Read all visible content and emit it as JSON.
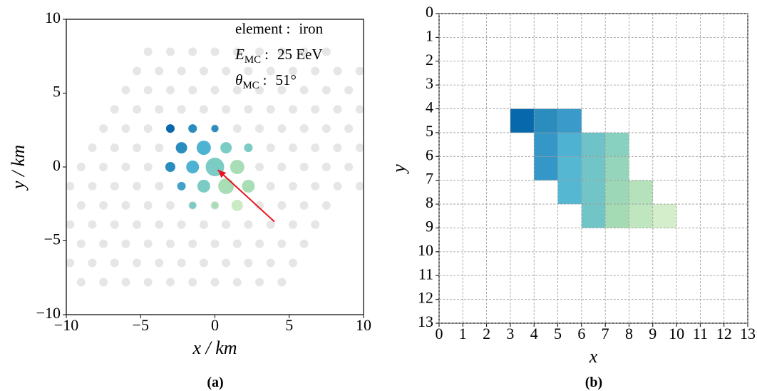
{
  "chart_data": [
    {
      "type": "scatter",
      "caption": "(a)",
      "xlabel": "x / km",
      "ylabel": "y / km",
      "xlim": [
        -10,
        10
      ],
      "ylim": [
        -10,
        10
      ],
      "xticks": [
        {
          "value": -10,
          "label": "−10"
        },
        {
          "value": -5,
          "label": "−5"
        },
        0,
        5,
        10
      ],
      "yticks": [
        {
          "value": -10,
          "label": "−10"
        },
        {
          "value": -5,
          "label": "−5"
        },
        0,
        5,
        10
      ],
      "stations": {
        "color": "#e6e6e6",
        "rows": [
          {
            "y": 7.8,
            "x": [
              -4.5,
              -3,
              -1.5,
              0,
              1.5,
              3,
              4.5,
              6,
              7.5
            ]
          },
          {
            "y": 6.5,
            "x": [
              -5.25,
              -3.75,
              -2.25,
              -0.75,
              0.75,
              2.25,
              3.75,
              5.25,
              6.75,
              8.25,
              9.75
            ]
          },
          {
            "y": 5.2,
            "x": [
              -6,
              -4.5,
              -3,
              -1.5,
              0,
              1.5,
              3,
              4.5,
              6,
              7.5,
              9
            ]
          },
          {
            "y": 3.9,
            "x": [
              -6.75,
              -5.25,
              -3.75,
              -2.25,
              -0.75,
              0.75,
              2.25,
              3.75,
              5.25,
              6.75,
              8.25,
              9.75
            ]
          },
          {
            "y": 2.6,
            "x": [
              -7.5,
              -6,
              -4.5,
              -3,
              -1.5,
              0,
              1.5,
              3,
              4.5,
              6,
              7.5,
              9
            ]
          },
          {
            "y": 1.3,
            "x": [
              -8.25,
              -6.75,
              -5.25,
              -3.75,
              -2.25,
              -0.75,
              0.75,
              2.25,
              3.75,
              5.25,
              6.75,
              8.25,
              9.75
            ]
          },
          {
            "y": 0,
            "x": [
              -9,
              -7.5,
              -6,
              -4.5,
              -3,
              -1.5,
              0,
              1.5,
              3,
              4.5,
              6,
              7.5,
              9
            ]
          },
          {
            "y": -1.3,
            "x": [
              -9.75,
              -8.25,
              -6.75,
              -5.25,
              -3.75,
              -2.25,
              -0.75,
              0.75,
              2.25,
              3.75,
              5.25,
              6.75,
              8.25,
              9.75
            ]
          },
          {
            "y": -2.6,
            "x": [
              -9,
              -7.5,
              -6,
              -4.5,
              -3,
              -1.5,
              0,
              1.5,
              3,
              4.5,
              6,
              7.5
            ]
          },
          {
            "y": -3.9,
            "x": [
              -9.75,
              -8.25,
              -6.75,
              -5.25,
              -3.75,
              -2.25,
              -0.75,
              0.75,
              2.25,
              3.75,
              5.25,
              6.75
            ]
          },
          {
            "y": -5.2,
            "x": [
              -9,
              -7.5,
              -6,
              -4.5,
              -3,
              -1.5,
              0,
              1.5,
              3,
              4.5,
              6
            ]
          },
          {
            "y": -6.5,
            "x": [
              -9.75,
              -8.25,
              -6.75,
              -5.25,
              -3.75,
              -2.25,
              -0.75,
              0.75,
              2.25,
              3.75,
              5.25
            ]
          },
          {
            "y": -7.8,
            "x": [
              -9,
              -7.5,
              -6,
              -4.5,
              -3,
              -1.5,
              0,
              1.5,
              3,
              4.5
            ]
          }
        ]
      },
      "hits": {
        "x": [
          -3,
          -1.5,
          0,
          -2.25,
          -0.75,
          0.75,
          2.25,
          -3,
          -1.5,
          0,
          1.5,
          -2.25,
          -0.75,
          0.75,
          2.25,
          -1.5,
          0,
          1.5
        ],
        "y": [
          2.6,
          2.6,
          2.6,
          1.3,
          1.3,
          1.3,
          1.3,
          0,
          0,
          0,
          0,
          -1.3,
          -1.3,
          -1.3,
          -1.3,
          -2.6,
          -2.6,
          -2.6
        ],
        "sizes": [
          6,
          6,
          5,
          8,
          10,
          8,
          6,
          7,
          9,
          13,
          10,
          6,
          9,
          11,
          9,
          5,
          5,
          8
        ],
        "colors": [
          "#0868ac",
          "#2b8cbe",
          "#2b8cbe",
          "#2b8cbe",
          "#4eb3d3",
          "#7bccc4",
          "#7bccc4",
          "#2b8cbe",
          "#4eb3d3",
          "#7bccc4",
          "#a8ddb5",
          "#43a2ca",
          "#7bccc4",
          "#a8ddb5",
          "#a8ddb5",
          "#7bccc4",
          "#a8ddb5",
          "#ccebc5"
        ]
      },
      "arrow": {
        "from": [
          4,
          -3.7
        ],
        "to": [
          0.2,
          -0.2
        ],
        "color": "#e8141e"
      },
      "annotations": [
        {
          "label": "element",
          "sep": ":",
          "value": "iron"
        },
        {
          "label": "E",
          "sub": "MC",
          "sep": ":",
          "value": "25 EeV"
        },
        {
          "label": "θ",
          "sub": "MC",
          "sep": ":",
          "value": "51°"
        }
      ]
    },
    {
      "type": "heatmap",
      "caption": "(b)",
      "xlabel": "x",
      "ylabel": "y",
      "xlim": [
        0,
        13
      ],
      "ylim": [
        13,
        0
      ],
      "grid": true,
      "xticks": [
        0,
        1,
        2,
        3,
        4,
        5,
        6,
        7,
        8,
        9,
        10,
        11,
        12,
        13
      ],
      "yticks": [
        0,
        1,
        2,
        3,
        4,
        5,
        6,
        7,
        8,
        9,
        10,
        11,
        12,
        13
      ],
      "cells": [
        {
          "x": 3,
          "y": 4,
          "color": "#0868ac"
        },
        {
          "x": 4,
          "y": 4,
          "color": "#2b8cbe"
        },
        {
          "x": 5,
          "y": 4,
          "color": "#3a9bcb"
        },
        {
          "x": 4,
          "y": 5,
          "color": "#3597c7"
        },
        {
          "x": 5,
          "y": 5,
          "color": "#4eb3d3"
        },
        {
          "x": 6,
          "y": 5,
          "color": "#6ec2c8"
        },
        {
          "x": 7,
          "y": 5,
          "color": "#88d0c0"
        },
        {
          "x": 4,
          "y": 6,
          "color": "#3597c7"
        },
        {
          "x": 5,
          "y": 6,
          "color": "#55b7d2"
        },
        {
          "x": 6,
          "y": 6,
          "color": "#72c5c6"
        },
        {
          "x": 7,
          "y": 6,
          "color": "#95d5bc"
        },
        {
          "x": 5,
          "y": 7,
          "color": "#55b7d2"
        },
        {
          "x": 6,
          "y": 7,
          "color": "#72c5c6"
        },
        {
          "x": 7,
          "y": 7,
          "color": "#9cd8b8"
        },
        {
          "x": 8,
          "y": 7,
          "color": "#b5e2bb"
        },
        {
          "x": 6,
          "y": 8,
          "color": "#72c5c6"
        },
        {
          "x": 7,
          "y": 8,
          "color": "#a5dbb4"
        },
        {
          "x": 8,
          "y": 8,
          "color": "#c0e6c0"
        },
        {
          "x": 9,
          "y": 8,
          "color": "#d4eecc"
        }
      ]
    }
  ]
}
